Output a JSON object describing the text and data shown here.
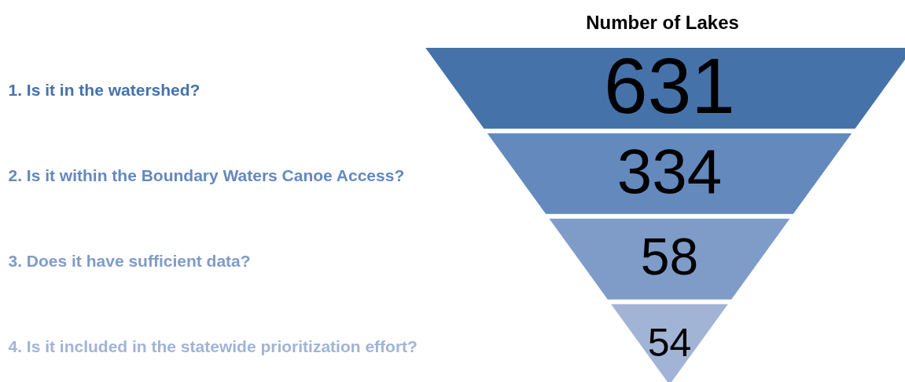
{
  "chart_data": {
    "type": "other",
    "title": "Number of Lakes",
    "categories": [
      "1. Is it in the watershed?",
      "2. Is it within the Boundary Waters Canoe Access?",
      "3. Does it have sufficient data?",
      "4. Is it included in the statewide prioritization effort?"
    ],
    "values": [
      631,
      334,
      58,
      54
    ],
    "colors": [
      "#4672aa",
      "#6489bd",
      "#7f9cc8",
      "#a1b4d6"
    ],
    "data_labels": true
  }
}
